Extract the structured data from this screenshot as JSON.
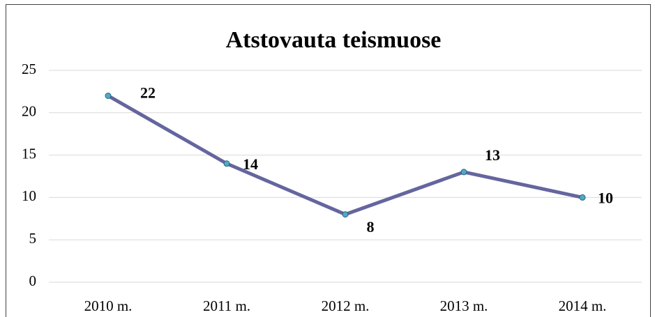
{
  "chart_data": {
    "type": "line",
    "title": "Atstovauta teismuose",
    "categories": [
      "2010 m.",
      "2011 m.",
      "2012 m.",
      "2013 m.",
      "2014 m."
    ],
    "series": [
      {
        "name": "Atstovauta teismuose",
        "color": "#65659e",
        "marker_color": "#4bacc6",
        "values": [
          22,
          14,
          8,
          13,
          10
        ]
      }
    ],
    "ylim": [
      0,
      25
    ],
    "yticks": [
      0,
      5,
      10,
      15,
      20,
      25
    ],
    "grid": true,
    "legend": false
  }
}
